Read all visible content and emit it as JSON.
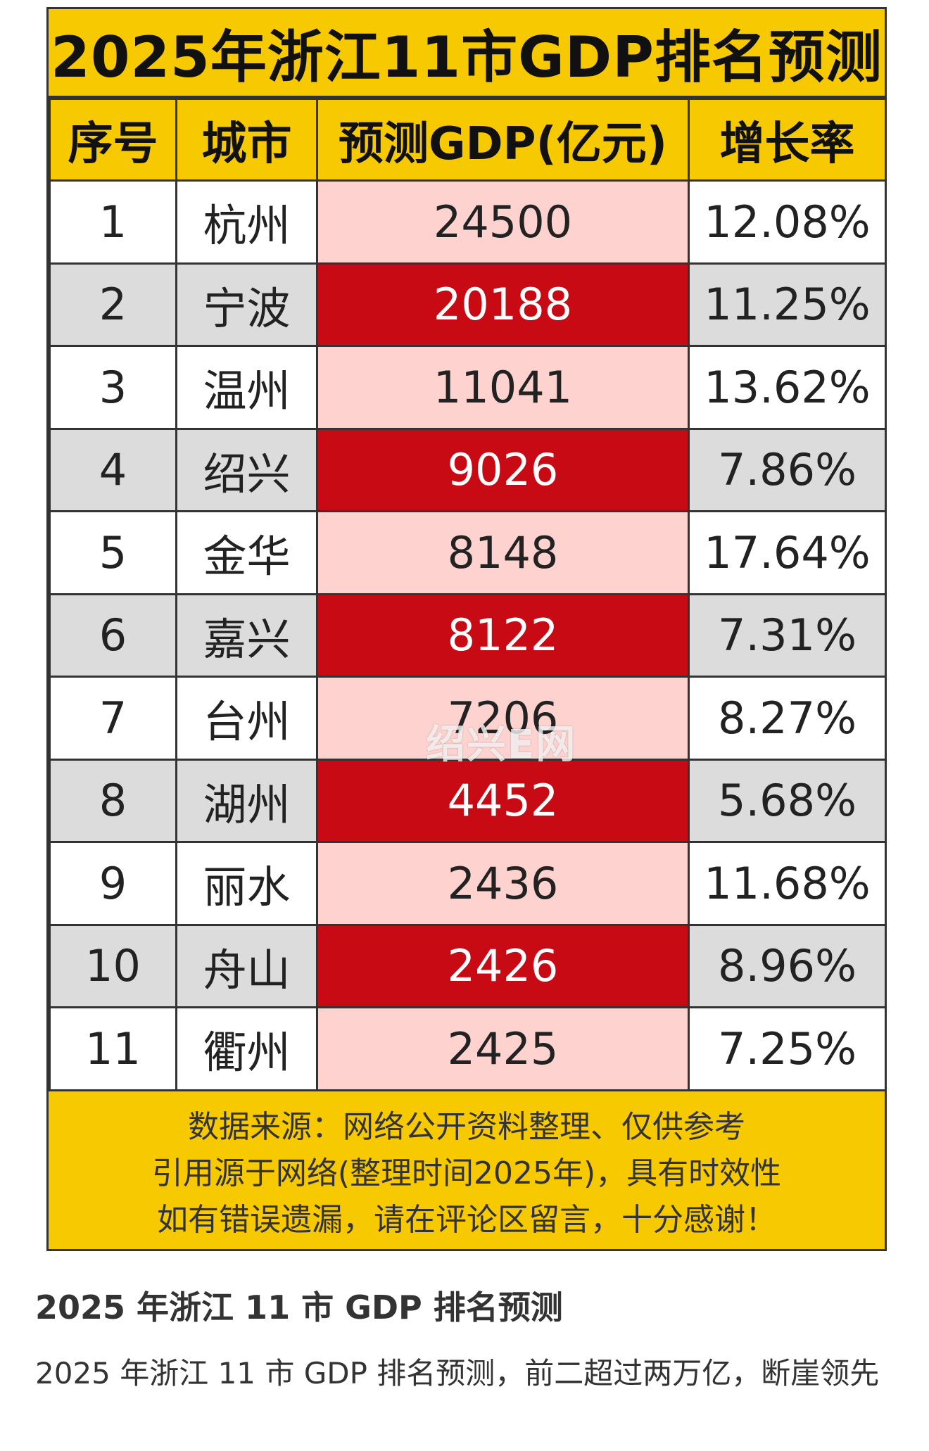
{
  "poster": {
    "title": "2025年浙江11市GDP排名预测",
    "headers": {
      "rank": "序号",
      "city": "城市",
      "gdp": "预测GDP(亿元)",
      "growth": "增长率"
    },
    "rows": [
      {
        "rank": "1",
        "city": "杭州",
        "gdp": "24500",
        "growth": "12.08%"
      },
      {
        "rank": "2",
        "city": "宁波",
        "gdp": "20188",
        "growth": "11.25%"
      },
      {
        "rank": "3",
        "city": "温州",
        "gdp": "11041",
        "growth": "13.62%"
      },
      {
        "rank": "4",
        "city": "绍兴",
        "gdp": "9026",
        "growth": "7.86%"
      },
      {
        "rank": "5",
        "city": "金华",
        "gdp": "8148",
        "growth": "17.64%"
      },
      {
        "rank": "6",
        "city": "嘉兴",
        "gdp": "8122",
        "growth": "7.31%"
      },
      {
        "rank": "7",
        "city": "台州",
        "gdp": "7206",
        "growth": "8.27%"
      },
      {
        "rank": "8",
        "city": "湖州",
        "gdp": "4452",
        "growth": "5.68%"
      },
      {
        "rank": "9",
        "city": "丽水",
        "gdp": "2436",
        "growth": "11.68%"
      },
      {
        "rank": "10",
        "city": "舟山",
        "gdp": "2426",
        "growth": "8.96%"
      },
      {
        "rank": "11",
        "city": "衢州",
        "gdp": "2425",
        "growth": "7.25%"
      }
    ],
    "watermark": "绍兴E网",
    "notes": [
      "数据来源：网络公开资料整理、仅供参考",
      "引用源于网络(整理时间2025年)，具有时效性",
      "如有错误遗漏，请在评论区留言，十分感谢！"
    ],
    "colors": {
      "yellow": "#f7c900",
      "red": "#c80a14",
      "pink": "#fdd2cf",
      "gray": "#dcdcdc"
    }
  },
  "post": {
    "title": "2025 年浙江 11 市 GDP 排名预测",
    "description": "2025 年浙江 11 市 GDP 排名预测，前二超过两万亿，断崖领先"
  }
}
